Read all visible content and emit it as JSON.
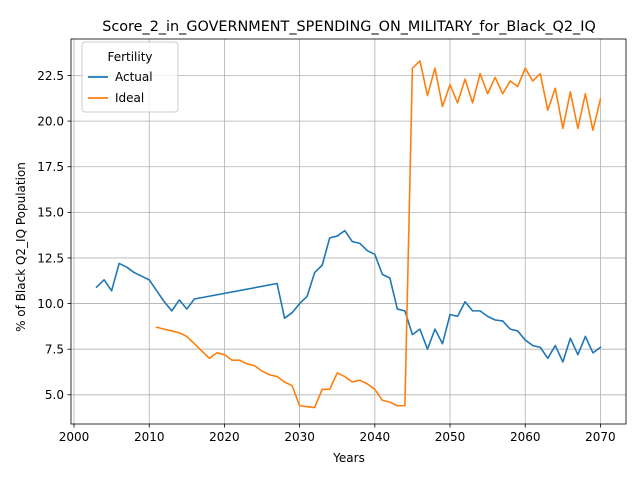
{
  "chart_data": {
    "type": "line",
    "title": "Score_2_in_GOVERNMENT_SPENDING_ON_MILITARY_for_Black_Q2_IQ",
    "xlabel": "Years",
    "ylabel": "% of Black Q2_IQ Population",
    "xlim": [
      1999.6,
      2073.4
    ],
    "ylim": [
      3.4,
      24.5
    ],
    "xticks": [
      2000,
      2010,
      2020,
      2030,
      2040,
      2050,
      2060,
      2070
    ],
    "yticks": [
      5.0,
      7.5,
      10.0,
      12.5,
      15.0,
      17.5,
      20.0,
      22.5
    ],
    "xtick_labels": [
      "2000",
      "2010",
      "2020",
      "2030",
      "2040",
      "2050",
      "2060",
      "2070"
    ],
    "ytick_labels": [
      "5.0",
      "7.5",
      "10.0",
      "12.5",
      "15.0",
      "17.5",
      "20.0",
      "22.5"
    ],
    "grid": true,
    "legend": {
      "title": "Fertility",
      "placement": "top-left"
    },
    "series": [
      {
        "name": "Actual",
        "color": "#1f77b4",
        "points": [
          [
            2003,
            10.9
          ],
          [
            2004,
            11.3
          ],
          [
            2005,
            10.7
          ],
          [
            2006,
            12.2
          ],
          [
            2007,
            12.0
          ],
          [
            2008,
            11.7
          ],
          [
            2009,
            11.5
          ],
          [
            2010,
            11.3
          ],
          [
            2011,
            10.7
          ],
          [
            2012,
            10.1
          ],
          [
            2013,
            9.6
          ],
          [
            2014,
            10.2
          ],
          [
            2015,
            9.7
          ],
          [
            2016,
            10.25
          ],
          [
            2027,
            11.1
          ],
          [
            2028,
            9.2
          ],
          [
            2029,
            9.5
          ],
          [
            2030,
            10.0
          ],
          [
            2031,
            10.4
          ],
          [
            2032,
            11.7
          ],
          [
            2033,
            12.1
          ],
          [
            2034,
            13.6
          ],
          [
            2035,
            13.7
          ],
          [
            2036,
            14.0
          ],
          [
            2037,
            13.4
          ],
          [
            2038,
            13.3
          ],
          [
            2039,
            12.9
          ],
          [
            2040,
            12.7
          ],
          [
            2041,
            11.6
          ],
          [
            2042,
            11.4
          ],
          [
            2043,
            9.7
          ],
          [
            2044,
            9.6
          ],
          [
            2045,
            8.3
          ],
          [
            2046,
            8.6
          ],
          [
            2047,
            7.5
          ],
          [
            2048,
            8.6
          ],
          [
            2049,
            7.8
          ],
          [
            2050,
            9.4
          ],
          [
            2051,
            9.3
          ],
          [
            2052,
            10.1
          ],
          [
            2053,
            9.6
          ],
          [
            2054,
            9.6
          ],
          [
            2055,
            9.3
          ],
          [
            2056,
            9.1
          ],
          [
            2057,
            9.05
          ],
          [
            2058,
            8.6
          ],
          [
            2059,
            8.5
          ],
          [
            2060,
            8.0
          ],
          [
            2061,
            7.7
          ],
          [
            2062,
            7.6
          ],
          [
            2063,
            7.0
          ],
          [
            2064,
            7.7
          ],
          [
            2065,
            6.8
          ],
          [
            2066,
            8.1
          ],
          [
            2067,
            7.2
          ],
          [
            2068,
            8.2
          ],
          [
            2069,
            7.3
          ],
          [
            2070,
            7.6
          ]
        ]
      },
      {
        "name": "Ideal",
        "color": "#ff7f0e",
        "points": [
          [
            2011,
            8.7
          ],
          [
            2012,
            8.6
          ],
          [
            2013,
            8.5
          ],
          [
            2014,
            8.4
          ],
          [
            2015,
            8.2
          ],
          [
            2016,
            7.8
          ],
          [
            2017,
            7.4
          ],
          [
            2018,
            7.0
          ],
          [
            2019,
            7.3
          ],
          [
            2020,
            7.2
          ],
          [
            2021,
            6.9
          ],
          [
            2022,
            6.9
          ],
          [
            2023,
            6.7
          ],
          [
            2024,
            6.6
          ],
          [
            2025,
            6.3
          ],
          [
            2026,
            6.1
          ],
          [
            2027,
            6.0
          ],
          [
            2028,
            5.7
          ],
          [
            2029,
            5.5
          ],
          [
            2030,
            4.4
          ],
          [
            2031,
            4.35
          ],
          [
            2032,
            4.3
          ],
          [
            2033,
            5.3
          ],
          [
            2034,
            5.3
          ],
          [
            2035,
            6.2
          ],
          [
            2036,
            6.0
          ],
          [
            2037,
            5.7
          ],
          [
            2038,
            5.8
          ],
          [
            2039,
            5.6
          ],
          [
            2040,
            5.3
          ],
          [
            2041,
            4.7
          ],
          [
            2042,
            4.6
          ],
          [
            2043,
            4.4
          ],
          [
            2044,
            4.4
          ],
          [
            2045,
            22.9
          ],
          [
            2046,
            23.3
          ],
          [
            2047,
            21.4
          ],
          [
            2048,
            22.9
          ],
          [
            2049,
            20.8
          ],
          [
            2050,
            22.0
          ],
          [
            2051,
            21.0
          ],
          [
            2052,
            22.3
          ],
          [
            2053,
            21.0
          ],
          [
            2054,
            22.6
          ],
          [
            2055,
            21.5
          ],
          [
            2056,
            22.4
          ],
          [
            2057,
            21.5
          ],
          [
            2058,
            22.2
          ],
          [
            2059,
            21.9
          ],
          [
            2060,
            22.9
          ],
          [
            2061,
            22.2
          ],
          [
            2062,
            22.6
          ],
          [
            2063,
            20.6
          ],
          [
            2064,
            21.8
          ],
          [
            2065,
            19.6
          ],
          [
            2066,
            21.6
          ],
          [
            2067,
            19.6
          ],
          [
            2068,
            21.5
          ],
          [
            2069,
            19.5
          ],
          [
            2070,
            21.2
          ]
        ]
      }
    ]
  }
}
